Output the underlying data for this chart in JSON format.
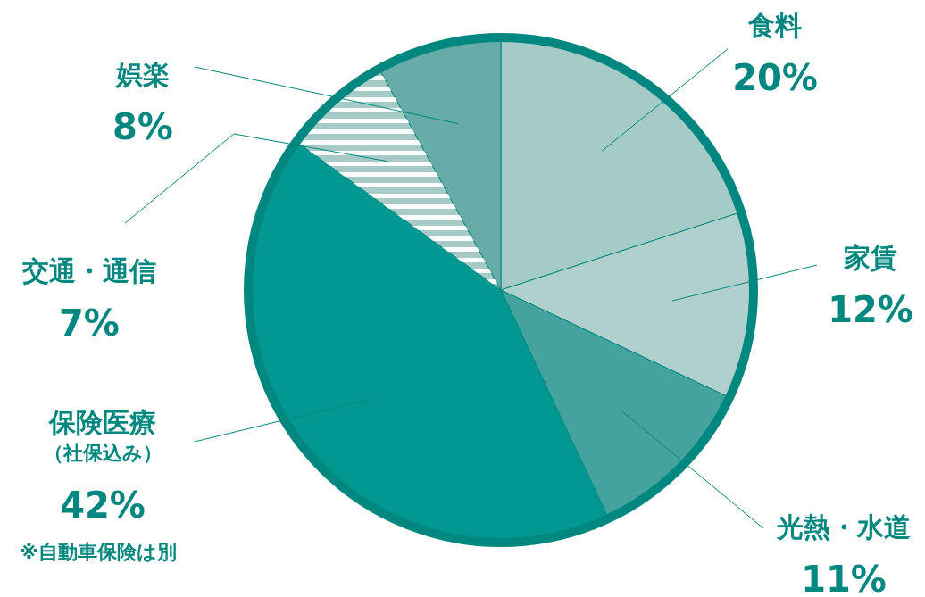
{
  "chart_data": {
    "type": "pie",
    "categories": [
      "食料",
      "家賃",
      "光熱・水道",
      "保険医療（社保込み）",
      "交通・通信",
      "娯楽"
    ],
    "values": [
      20,
      12,
      11,
      42,
      7,
      8
    ],
    "value_labels": [
      "20%",
      "12%",
      "11%",
      "42%",
      "7%",
      "8%"
    ],
    "colors": [
      "#a5cbc7",
      "#b0d0cd",
      "#44a39d",
      "#009891",
      "#a6cbc7",
      "#67aca8"
    ],
    "annotations": [
      "※自動車保険は別"
    ]
  }
}
